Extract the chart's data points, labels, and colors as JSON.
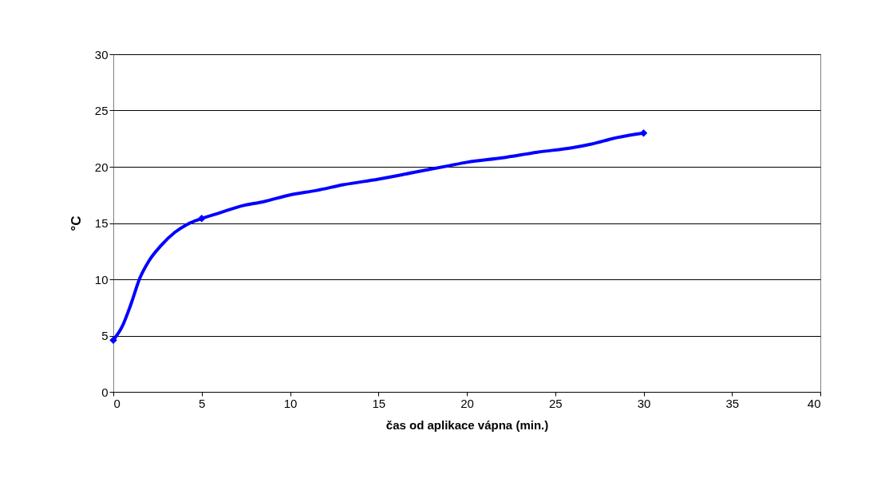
{
  "chart_data": {
    "type": "line",
    "xlabel": "čas od aplikace vápna (min.)",
    "ylabel": "°C",
    "xlim": [
      0,
      40
    ],
    "ylim": [
      0,
      30
    ],
    "xticks": [
      0,
      5,
      10,
      15,
      20,
      25,
      30,
      35,
      40
    ],
    "yticks": [
      0,
      5,
      10,
      15,
      20,
      25,
      30
    ],
    "grid": "y",
    "line_style": "solid",
    "series": [
      {
        "type": "line",
        "color": "#0000ff",
        "marker": "none",
        "x": [
          0,
          0.5,
          1,
          1.5,
          2,
          2.7,
          3.5,
          4.2,
          5,
          6,
          7.2,
          8.5,
          10,
          11.5,
          13,
          15,
          17,
          19,
          20,
          22,
          24,
          26,
          27,
          28.5,
          30
        ],
        "values": [
          4.6,
          5.8,
          7.8,
          10.1,
          11.6,
          13.0,
          14.2,
          14.9,
          15.4,
          15.9,
          16.5,
          16.9,
          17.5,
          17.9,
          18.4,
          18.9,
          19.5,
          20.1,
          20.4,
          20.8,
          21.3,
          21.7,
          22.0,
          22.6,
          23.0
        ]
      },
      {
        "type": "scatter",
        "color": "#0000ff",
        "marker": "diamond",
        "x": [
          0,
          5,
          30
        ],
        "values": [
          4.6,
          15.4,
          23.0
        ]
      }
    ]
  }
}
